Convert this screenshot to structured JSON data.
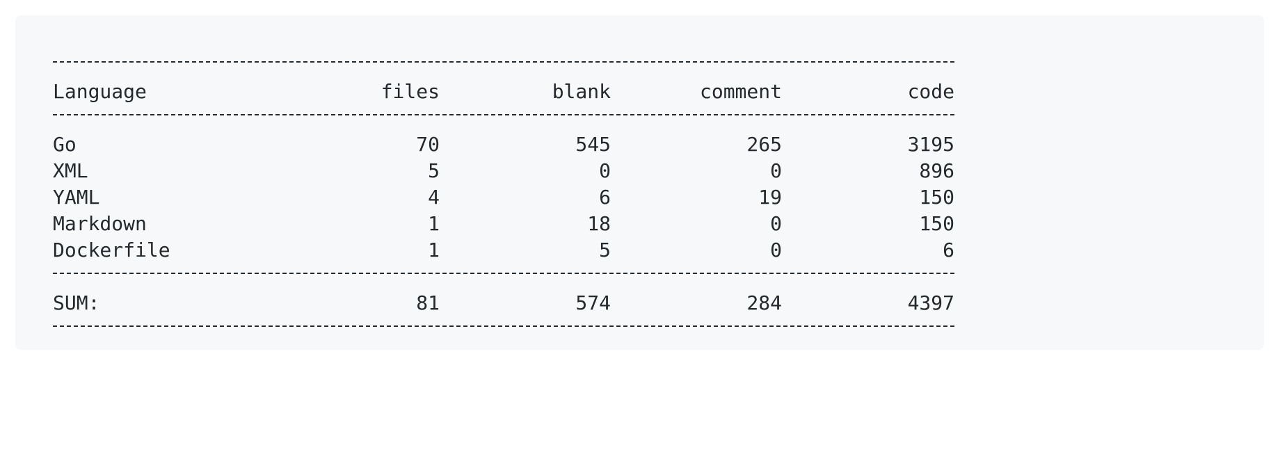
{
  "table": {
    "header": {
      "language": "Language",
      "files": "files",
      "blank": "blank",
      "comment": "comment",
      "code": "code"
    },
    "rows": [
      {
        "language": "Go",
        "files": "70",
        "blank": "545",
        "comment": "265",
        "code": "3195"
      },
      {
        "language": "XML",
        "files": "5",
        "blank": "0",
        "comment": "0",
        "code": "896"
      },
      {
        "language": "YAML",
        "files": "4",
        "blank": "6",
        "comment": "19",
        "code": "150"
      },
      {
        "language": "Markdown",
        "files": "1",
        "blank": "18",
        "comment": "0",
        "code": "150"
      },
      {
        "language": "Dockerfile",
        "files": "1",
        "blank": "5",
        "comment": "0",
        "code": "6"
      }
    ],
    "sum": {
      "language": "SUM:",
      "files": "81",
      "blank": "574",
      "comment": "284",
      "code": "4397"
    }
  }
}
